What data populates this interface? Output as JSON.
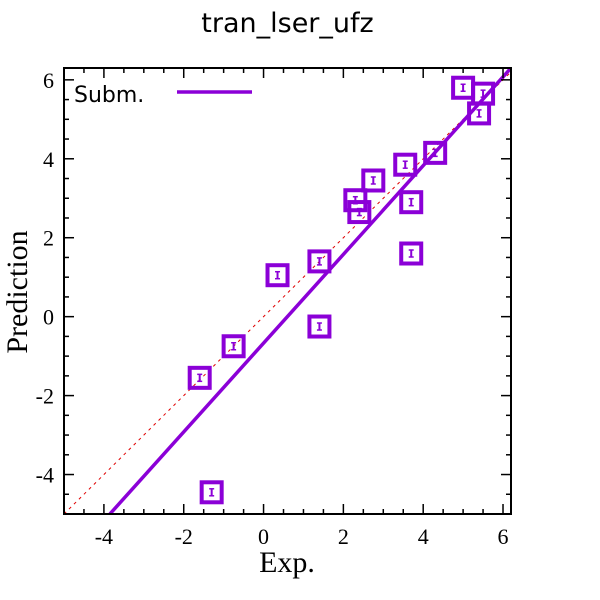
{
  "chart_data": {
    "type": "scatter",
    "title": "tran_lser_ufz",
    "xlabel": "Exp.",
    "ylabel": "Prediction",
    "xlim": [
      -5,
      6.2
    ],
    "ylim": [
      -5,
      6.3
    ],
    "xticks": [
      -4,
      -2,
      0,
      2,
      4,
      6
    ],
    "yticks": [
      -4,
      -2,
      0,
      2,
      4,
      6
    ],
    "xtick_labels": [
      "-4",
      "-2",
      "0",
      "2",
      "4",
      "6"
    ],
    "ytick_labels": [
      "-4",
      "-2",
      "0",
      "2",
      "4",
      "6"
    ],
    "series": [
      {
        "name": "Subm.",
        "color": "#8b00d7",
        "marker": "square-with-error-bar",
        "points": [
          {
            "x": -1.6,
            "y": -1.55
          },
          {
            "x": -0.75,
            "y": -0.75
          },
          {
            "x": 0.35,
            "y": 1.05
          },
          {
            "x": 1.4,
            "y": 1.4
          },
          {
            "x": 1.4,
            "y": -0.25
          },
          {
            "x": -1.3,
            "y": -4.45
          },
          {
            "x": 2.3,
            "y": 2.95
          },
          {
            "x": 2.4,
            "y": 2.65
          },
          {
            "x": 2.75,
            "y": 3.45
          },
          {
            "x": 3.55,
            "y": 3.85
          },
          {
            "x": 3.7,
            "y": 2.9
          },
          {
            "x": 3.7,
            "y": 1.6
          },
          {
            "x": 4.3,
            "y": 4.15
          },
          {
            "x": 5.0,
            "y": 5.8
          },
          {
            "x": 5.5,
            "y": 5.65
          },
          {
            "x": 5.4,
            "y": 5.15
          }
        ]
      }
    ],
    "fit_line": {
      "x": [
        -3.85,
        6.2
      ],
      "y": [
        -5.0,
        6.3
      ],
      "color": "#8b00d7"
    },
    "identity_line": {
      "style": "dashed",
      "color": "#e00000"
    },
    "legend": {
      "position": "top-left",
      "label": "Subm."
    },
    "grid": false
  }
}
